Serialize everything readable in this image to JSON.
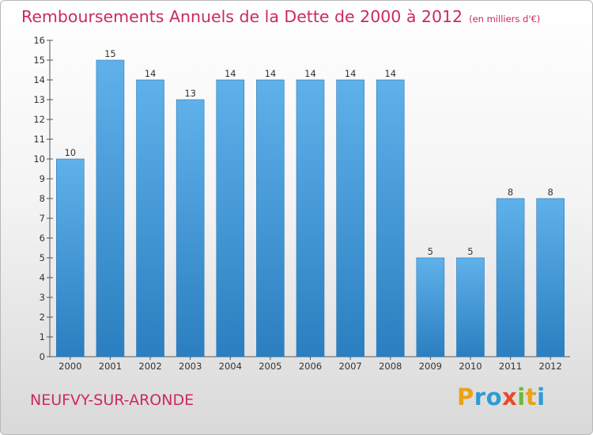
{
  "header": {
    "title": "Remboursements Annuels de la Dette de 2000 à 2012",
    "unit": "(en milliers d'€)"
  },
  "footer": {
    "commune": "NEUFVY-SUR-ARONDE",
    "brand": "Proxiti"
  },
  "colors": {
    "title": "#cc2a5c",
    "bar_top": "#5fb1ea",
    "bar_bottom": "#2b7fc0"
  },
  "chart_data": {
    "type": "bar",
    "title": "Remboursements Annuels de la Dette de 2000 à 2012",
    "ylabel": "(en milliers d'€)",
    "xlabel": "",
    "categories": [
      "2000",
      "2001",
      "2002",
      "2003",
      "2004",
      "2005",
      "2006",
      "2007",
      "2008",
      "2009",
      "2010",
      "2011",
      "2012"
    ],
    "values": [
      10,
      15,
      14,
      13,
      14,
      14,
      14,
      14,
      14,
      5,
      5,
      8,
      8
    ],
    "data_labels": [
      "10",
      "15",
      "14",
      "13",
      "14",
      "14",
      "14",
      "14",
      "14",
      "5",
      "5",
      "8",
      "8"
    ],
    "ylim": [
      0,
      16
    ],
    "yticks": [
      "0",
      "1",
      "2",
      "3",
      "4",
      "5",
      "6",
      "7",
      "8",
      "9",
      "10",
      "11",
      "12",
      "13",
      "14",
      "15",
      "16"
    ],
    "grid": false,
    "legend": "none"
  }
}
